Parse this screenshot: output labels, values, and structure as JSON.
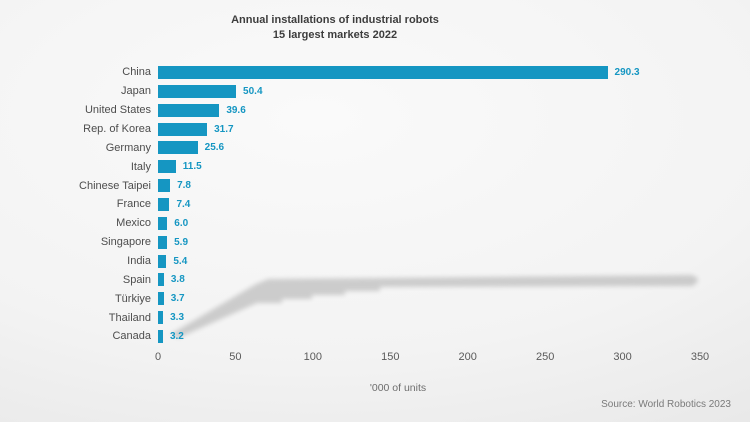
{
  "title": {
    "line1": "Annual installations of industrial robots",
    "line2": "15 largest markets 2022"
  },
  "source": "Source: World Robotics 2023",
  "colors": {
    "bar": "#1596c2",
    "value_label": "#1596c2",
    "category_label": "#4d4d4d",
    "title_text": "#3d3d3d",
    "tick_label": "#5a5a5a",
    "axis_label": "#6e6e6e",
    "source_text": "#7a7a7a",
    "background_shadow": "#a0a0a0"
  },
  "chart_data": {
    "type": "bar",
    "orientation": "horizontal",
    "title": "Annual installations of industrial robots — 15 largest markets 2022",
    "categories": [
      "China",
      "Japan",
      "United States",
      "Rep. of Korea",
      "Germany",
      "Italy",
      "Chinese Taipei",
      "France",
      "Mexico",
      "Singapore",
      "India",
      "Spain",
      "Türkiye",
      "Thailand",
      "Canada"
    ],
    "values": [
      290.3,
      50.4,
      39.6,
      31.7,
      25.6,
      11.5,
      7.8,
      7.4,
      6.0,
      5.9,
      5.4,
      3.8,
      3.7,
      3.3,
      3.2
    ],
    "value_labels": [
      "290.3",
      "50.4",
      "39.6",
      "31.7",
      "25.6",
      "11.5",
      "7.8",
      "7.4",
      "6.0",
      "5.9",
      "5.4",
      "3.8",
      "3.7",
      "3.3",
      "3.2"
    ],
    "xlabel": "'000 of units",
    "ylabel": "",
    "xticks": [
      0,
      50,
      100,
      150,
      200,
      250,
      300,
      350
    ],
    "xlim": [
      0,
      350
    ],
    "grid": false,
    "legend": "none",
    "data_labels": "outside-end",
    "source": "Source: World Robotics 2023"
  }
}
